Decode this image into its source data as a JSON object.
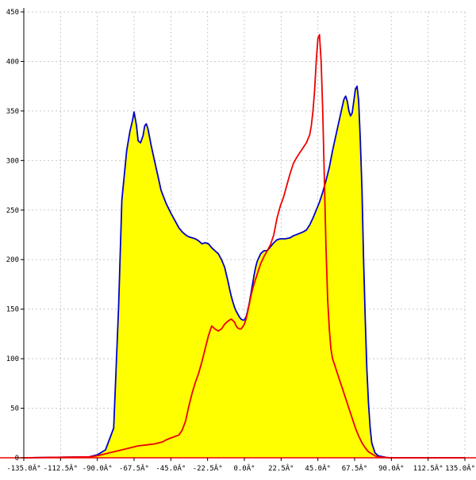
{
  "chart_data": {
    "type": "area",
    "title": "",
    "xlabel": "",
    "ylabel": "",
    "xlim": [
      -135,
      135
    ],
    "ylim": [
      0,
      450
    ],
    "grid": true,
    "x_ticks": [
      -135,
      -112.5,
      -90,
      -67.5,
      -45,
      -22.5,
      0,
      22.5,
      45,
      67.5,
      90,
      112.5,
      135
    ],
    "x_tick_labels": [
      "-135.0Â°",
      "-112.5Â°",
      "-90.0Â°",
      "-67.5Â°",
      "-45.0Â°",
      "-22.5Â°",
      "0.0Â°",
      "22.5Â°",
      "45.0Â°",
      "67.5Â°",
      "90.0Â°",
      "112.5Â°",
      "135.0Â°"
    ],
    "y_ticks": [
      0,
      50,
      100,
      150,
      200,
      250,
      300,
      350,
      400,
      450
    ],
    "y_tick_labels": [
      "0",
      "50",
      "100",
      "150",
      "200",
      "250",
      "300",
      "350",
      "400",
      "450"
    ],
    "series": [
      {
        "color": "#0000cc",
        "fill": "#ffff00",
        "x": [
          -135,
          -95,
          -90,
          -85,
          -80,
          -77,
          -75,
          -72,
          -70,
          -68.5,
          -67.5,
          -66,
          -65,
          -63.5,
          -62,
          -61,
          -60,
          -59,
          -57,
          -55,
          -53,
          -51,
          -48,
          -45,
          -42,
          -40,
          -38,
          -36,
          -34,
          -32,
          -30,
          -28,
          -26,
          -24,
          -22,
          -20,
          -18,
          -16,
          -14,
          -12,
          -11,
          -10,
          -9,
          -8,
          -7,
          -6,
          -5,
          -4,
          -3,
          -2,
          -1,
          0,
          1,
          2,
          3,
          4,
          5,
          6,
          7,
          8,
          10,
          12,
          14,
          16,
          18,
          20,
          22,
          25,
          28,
          30,
          33,
          36,
          38,
          40,
          42,
          44,
          46,
          48,
          50,
          52,
          54,
          56,
          58,
          60,
          61,
          62,
          63,
          64,
          65,
          66,
          67,
          68,
          69,
          70,
          71,
          72,
          73,
          74,
          75,
          76,
          77,
          78,
          80,
          82,
          85,
          88,
          90,
          135
        ],
        "y": [
          0,
          1,
          3,
          8,
          30,
          150,
          260,
          310,
          330,
          340,
          349,
          335,
          320,
          318,
          325,
          335,
          337,
          332,
          315,
          300,
          285,
          270,
          257,
          247,
          238,
          232,
          228,
          225,
          223,
          222,
          221,
          219,
          216,
          217,
          216,
          212,
          209,
          206,
          200,
          192,
          185,
          178,
          170,
          163,
          157,
          152,
          148,
          145,
          142,
          140,
          139,
          139,
          142,
          148,
          156,
          165,
          175,
          185,
          193,
          199,
          206,
          209,
          209,
          213,
          217,
          220,
          221,
          221,
          222,
          224,
          226,
          228,
          230,
          235,
          242,
          250,
          258,
          268,
          280,
          293,
          310,
          325,
          340,
          355,
          362,
          365,
          360,
          350,
          345,
          348,
          360,
          372,
          375,
          360,
          320,
          270,
          200,
          140,
          90,
          55,
          30,
          15,
          5,
          2,
          1,
          0,
          0,
          0
        ]
      },
      {
        "color": "#ee0000",
        "x": [
          -135,
          -95,
          -90,
          -85,
          -80,
          -75,
          -70,
          -65,
          -60,
          -55,
          -50,
          -48,
          -45,
          -40,
          -38,
          -36,
          -34,
          -32,
          -30,
          -28,
          -26,
          -24,
          -22,
          -20,
          -18,
          -16,
          -14,
          -12,
          -10,
          -8,
          -6,
          -5,
          -4,
          -3,
          -2,
          -1,
          0,
          1,
          2,
          3,
          4,
          5,
          6,
          8,
          10,
          12,
          14,
          16,
          18,
          20,
          22,
          24,
          26,
          28,
          30,
          32,
          34,
          36,
          38,
          40,
          41,
          42,
          43,
          44,
          45,
          46,
          47,
          48,
          49,
          50,
          51,
          52,
          53,
          54,
          55,
          56,
          58,
          60,
          62,
          64,
          66,
          68,
          70,
          72,
          74,
          76,
          78,
          80,
          82,
          85,
          88,
          90,
          95,
          135
        ],
        "y": [
          0,
          1,
          2,
          4,
          6,
          8,
          10,
          12,
          13,
          14,
          16,
          18,
          20,
          23,
          28,
          37,
          52,
          65,
          76,
          85,
          97,
          110,
          123,
          133,
          130,
          128,
          130,
          135,
          138,
          140,
          137,
          133,
          131,
          130,
          130,
          132,
          135,
          140,
          147,
          155,
          163,
          170,
          176,
          186,
          196,
          203,
          209,
          215,
          225,
          242,
          254,
          263,
          275,
          287,
          297,
          303,
          308,
          313,
          318,
          326,
          335,
          350,
          370,
          400,
          423,
          427,
          400,
          350,
          280,
          210,
          160,
          130,
          110,
          100,
          95,
          90,
          80,
          70,
          60,
          50,
          40,
          30,
          22,
          15,
          10,
          6,
          4,
          2,
          1,
          0.5,
          0.2,
          0,
          0,
          0
        ]
      }
    ]
  }
}
